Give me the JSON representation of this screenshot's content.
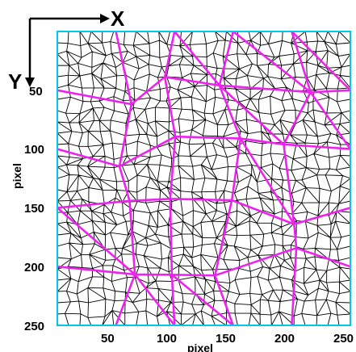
{
  "figure": {
    "x_direction_label": "X",
    "y_direction_label": "Y",
    "x_axis_label": "pixel",
    "y_axis_label": "pixel",
    "x_ticks": [
      "50",
      "100",
      "150",
      "200",
      "250"
    ],
    "y_ticks": [
      "50",
      "100",
      "150",
      "200",
      "250"
    ],
    "x_range": [
      0,
      250
    ],
    "y_range": [
      0,
      250
    ],
    "colors": {
      "fine_mesh": "#000000",
      "grain_boundaries": "#ee22ee",
      "frame": "#00c8e6",
      "background": "#ffffff"
    }
  }
}
